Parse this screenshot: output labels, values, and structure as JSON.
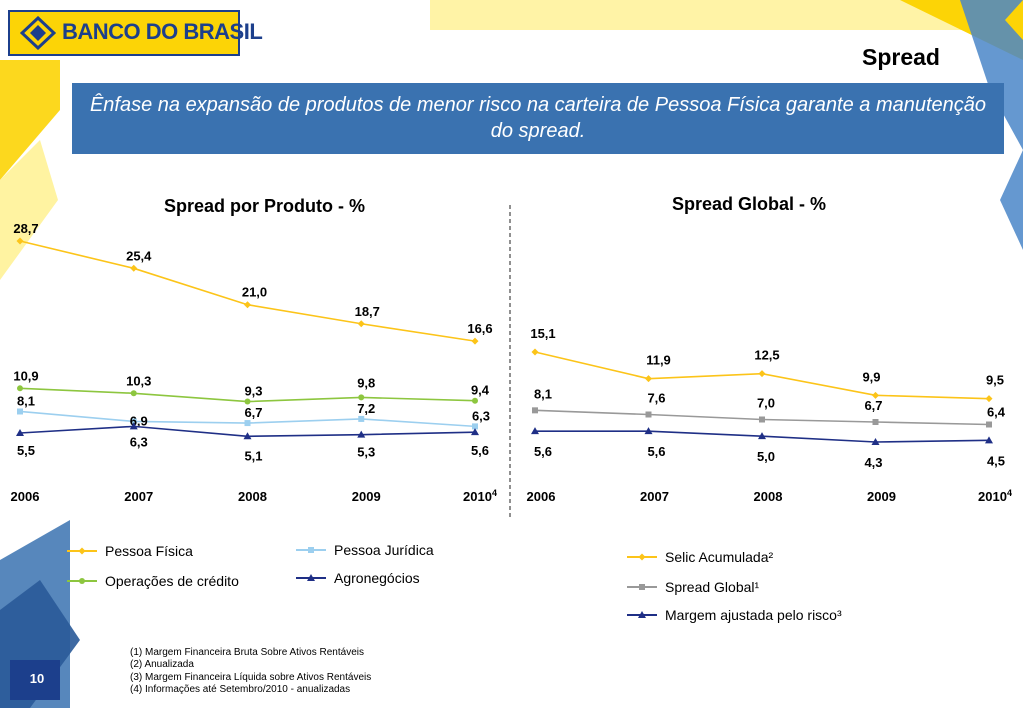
{
  "brand": {
    "name": "BANCO DO BRASIL",
    "colors": {
      "yellow": "#fcd406",
      "blue": "#1c3f8c",
      "banner": "#3a72b0"
    },
    "logo_icon": "banco-do-brasil-logo-icon"
  },
  "page_title": "Spread",
  "banner_text": "Ênfase na expansão de produtos de menor risco na carteira de Pessoa Física garante a manutenção do spread.",
  "footnotes": [
    "(1) Margem Financeira Bruta Sobre Ativos Rentáveis",
    "(2) Anualizada",
    "(3) Margem Financeira Líquida sobre Ativos Rentáveis",
    "(4) Informações até Setembro/2010 - anualizadas"
  ],
  "page_number": "10",
  "chart_data": [
    {
      "type": "line",
      "title": "Spread por Produto - %",
      "categories": [
        "2006",
        "2007",
        "2008",
        "2009",
        "2010"
      ],
      "category_superscripts": [
        "",
        "",
        "",
        "",
        "4"
      ],
      "series": [
        {
          "name": "Pessoa Física",
          "values": [
            28.7,
            25.4,
            21.0,
            18.7,
            16.6
          ],
          "labels": [
            "28,7",
            "25,4",
            "21,0",
            "18,7",
            "16,6"
          ],
          "color": "#fcc419",
          "marker": "diamond"
        },
        {
          "name": "Operações de crédito",
          "values": [
            10.9,
            10.3,
            9.3,
            9.8,
            9.4
          ],
          "labels": [
            "10,9",
            "10,3",
            "9,3",
            "9,8",
            "9,4"
          ],
          "color": "#8dc63f",
          "marker": "circle"
        },
        {
          "name": "Pessoa Jurídica",
          "values": [
            8.1,
            6.9,
            6.7,
            7.2,
            6.3
          ],
          "labels": [
            "8,1",
            "6,9",
            "6,7",
            "7,2",
            "6,3"
          ],
          "color": "#9ccfef",
          "marker": "square"
        },
        {
          "name": "Agronegócios",
          "values": [
            5.5,
            6.3,
            5.1,
            5.3,
            5.6
          ],
          "labels": [
            "5,5",
            "6,3",
            "5,1",
            "5,3",
            "5,6"
          ],
          "color": "#1f2f86",
          "marker": "triangle"
        }
      ],
      "legend_order": [
        "Pessoa Física",
        "Pessoa Jurídica",
        "Operações de crédito",
        "Agronegócios"
      ]
    },
    {
      "type": "line",
      "title": "Spread Global - %",
      "categories": [
        "2006",
        "2007",
        "2008",
        "2009",
        "2010"
      ],
      "category_superscripts": [
        "",
        "",
        "",
        "",
        "4"
      ],
      "series": [
        {
          "name": "Selic Acumulada²",
          "values": [
            15.1,
            11.9,
            12.5,
            9.9,
            9.5
          ],
          "labels": [
            "15,1",
            "11,9",
            "12,5",
            "9,9",
            "9,5"
          ],
          "color": "#fcc419",
          "marker": "diamond"
        },
        {
          "name": "Spread Global¹",
          "values": [
            8.1,
            7.6,
            7.0,
            6.7,
            6.4
          ],
          "labels": [
            "8,1",
            "7,6",
            "7,0",
            "6,7",
            "6,4"
          ],
          "color": "#999999",
          "marker": "square"
        },
        {
          "name": "Margem ajustada pelo risco³",
          "values": [
            5.6,
            5.6,
            5.0,
            4.3,
            4.5
          ],
          "labels": [
            "5,6",
            "5,6",
            "5,0",
            "4,3",
            "4,5"
          ],
          "color": "#1f2f86",
          "marker": "triangle"
        }
      ],
      "legend_order": [
        "Selic Acumulada²",
        "Spread Global¹",
        "Margem ajustada pelo risco³"
      ]
    }
  ]
}
